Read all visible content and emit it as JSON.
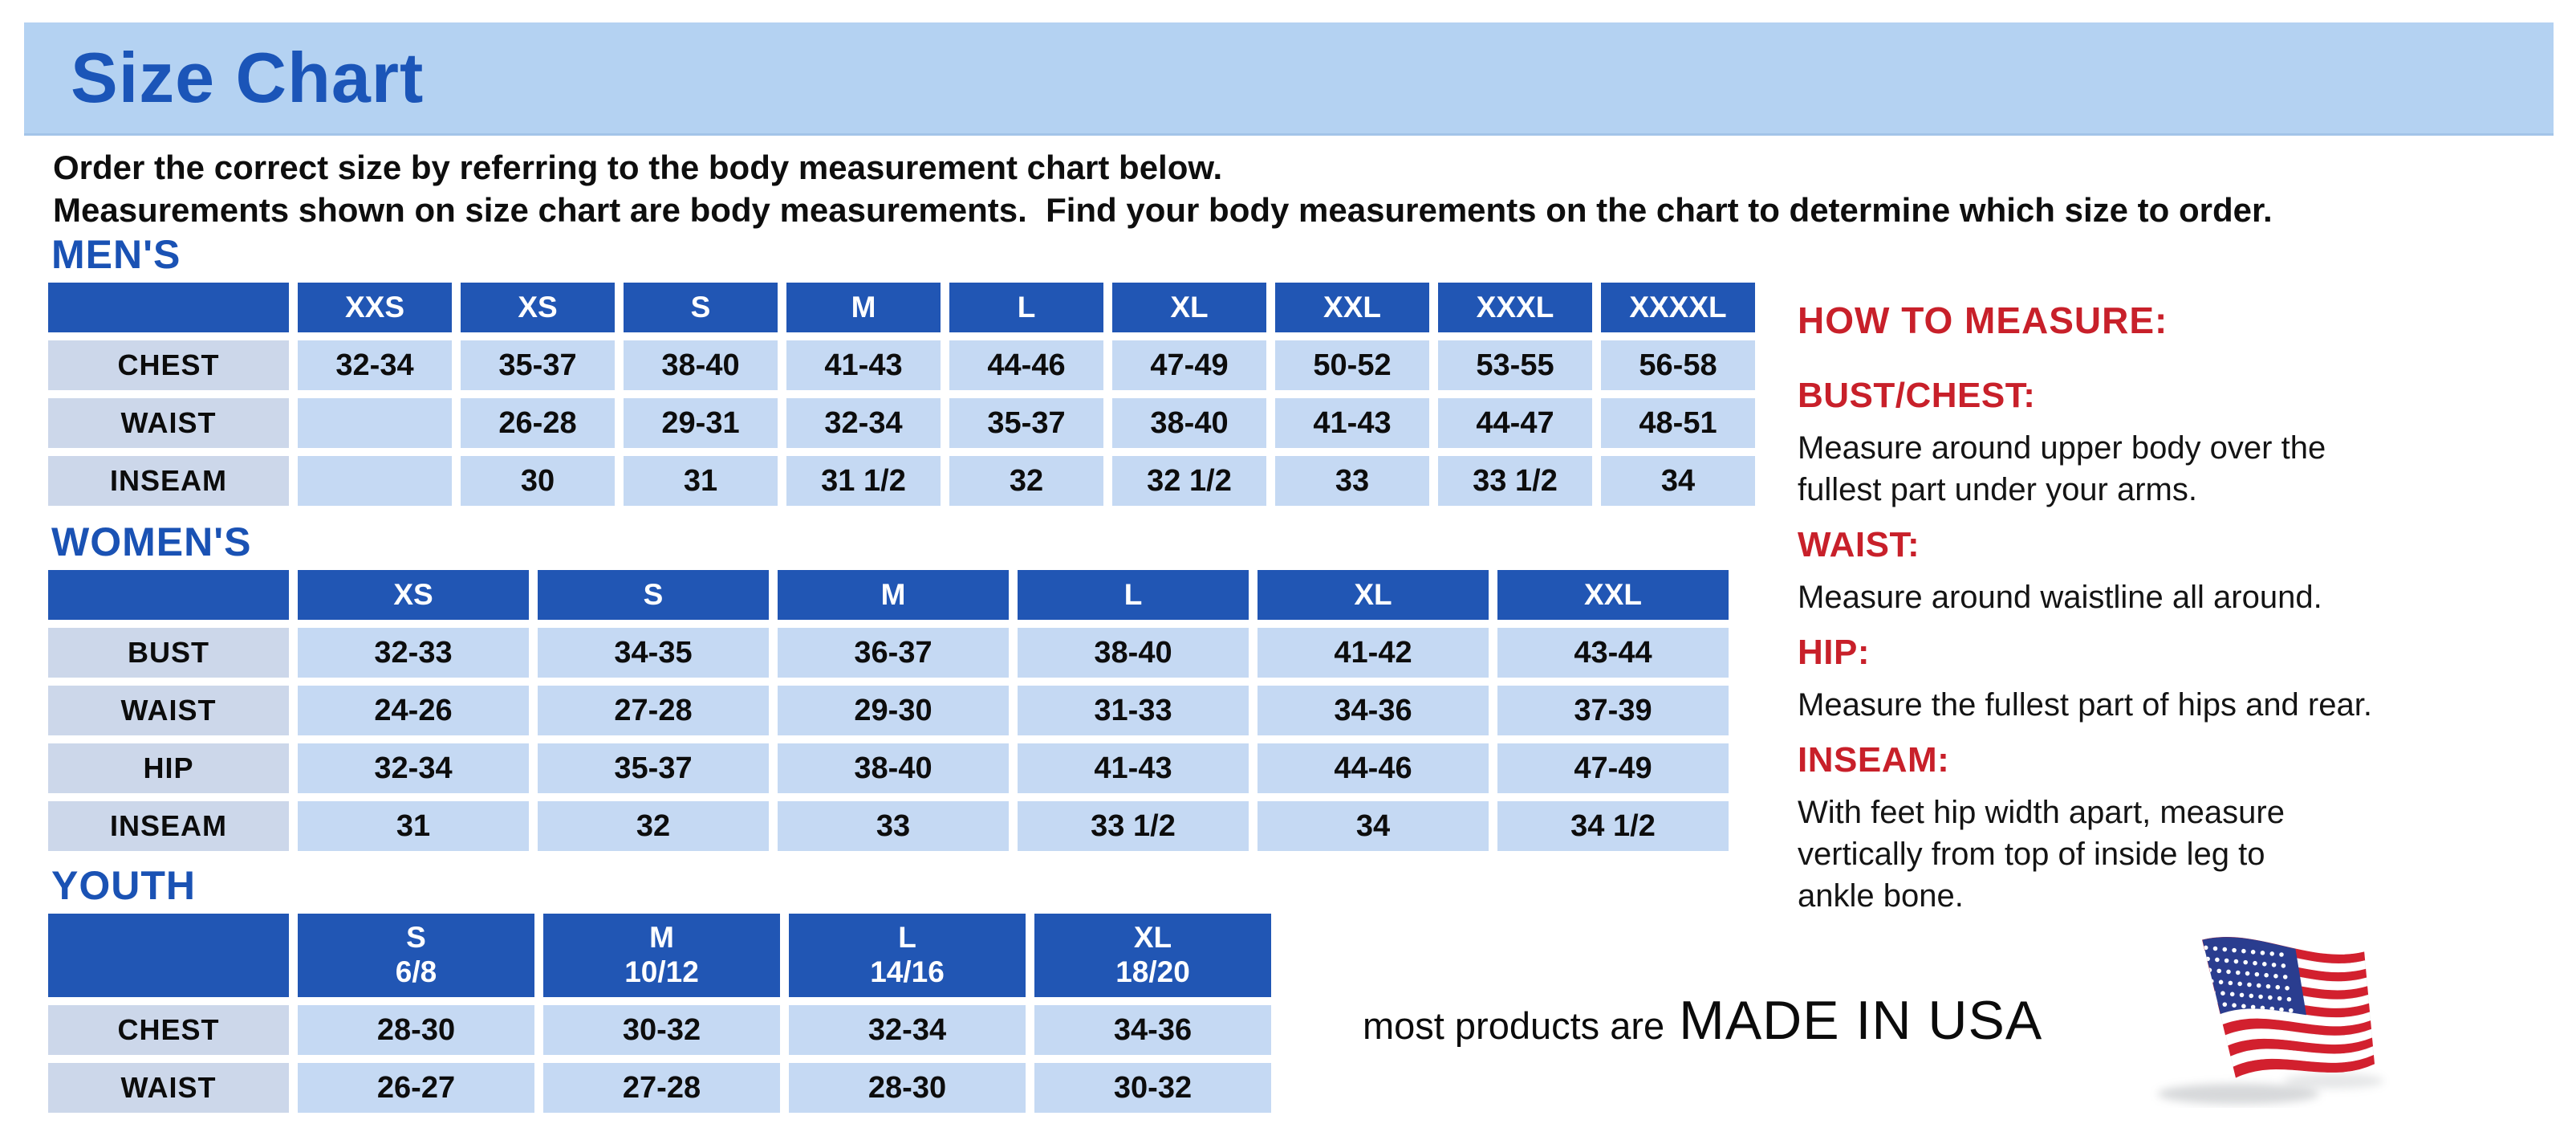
{
  "page": {
    "title": "Size Chart",
    "intro_line1": "Order the correct size by referring to the body measurement chart below.",
    "intro_line2": "Measurements shown on size chart are body measurements.  Find your body measurements on the chart to determine which size to order."
  },
  "colors": {
    "banner_blue": "#b4d2f2",
    "title_blue": "#1b55b8",
    "header_cell_blue": "#2156b4",
    "data_cell_blue": "#c5d9f3",
    "label_cell_blue": "#ccd7ea",
    "heading_red": "#c8202a",
    "flag_red": "#d2202e",
    "flag_blue": "#2a3d8f"
  },
  "tables": {
    "mens": {
      "heading": "MEN'S",
      "headers": [
        "XXS",
        "XS",
        "S",
        "M",
        "L",
        "XL",
        "XXL",
        "XXXL",
        "XXXXL"
      ],
      "rows": [
        {
          "label": "CHEST",
          "values": [
            "32-34",
            "35-37",
            "38-40",
            "41-43",
            "44-46",
            "47-49",
            "50-52",
            "53-55",
            "56-58"
          ]
        },
        {
          "label": "WAIST",
          "values": [
            "",
            "26-28",
            "29-31",
            "32-34",
            "35-37",
            "38-40",
            "41-43",
            "44-47",
            "48-51"
          ]
        },
        {
          "label": "INSEAM",
          "values": [
            "",
            "30",
            "31",
            "31 1/2",
            "32",
            "32 1/2",
            "33",
            "33 1/2",
            "34"
          ]
        }
      ]
    },
    "womens": {
      "heading": "WOMEN'S",
      "headers": [
        "XS",
        "S",
        "M",
        "L",
        "XL",
        "XXL"
      ],
      "rows": [
        {
          "label": "BUST",
          "values": [
            "32-33",
            "34-35",
            "36-37",
            "38-40",
            "41-42",
            "43-44"
          ]
        },
        {
          "label": "WAIST",
          "values": [
            "24-26",
            "27-28",
            "29-30",
            "31-33",
            "34-36",
            "37-39"
          ]
        },
        {
          "label": "HIP",
          "values": [
            "32-34",
            "35-37",
            "38-40",
            "41-43",
            "44-46",
            "47-49"
          ]
        },
        {
          "label": "INSEAM",
          "values": [
            "31",
            "32",
            "33",
            "33 1/2",
            "34",
            "34 1/2"
          ]
        }
      ]
    },
    "youth": {
      "heading": "YOUTH",
      "headers": [
        "S\n6/8",
        "M\n10/12",
        "L\n14/16",
        "XL\n18/20"
      ],
      "rows": [
        {
          "label": "CHEST",
          "values": [
            "28-30",
            "30-32",
            "32-34",
            "34-36"
          ]
        },
        {
          "label": "WAIST",
          "values": [
            "26-27",
            "27-28",
            "28-30",
            "30-32"
          ]
        }
      ]
    }
  },
  "how_to_measure": {
    "heading": "HOW TO MEASURE:",
    "sections": [
      {
        "label": "BUST/CHEST:",
        "text": "Measure around upper body over the\nfullest part under your arms."
      },
      {
        "label": "WAIST:",
        "text": "Measure around waistline all around."
      },
      {
        "label": "HIP:",
        "text": "Measure the fullest part of hips and rear."
      },
      {
        "label": "INSEAM:",
        "text": "With feet hip width apart, measure\nvertically from top of inside leg to\nankle bone."
      }
    ]
  },
  "footer": {
    "made_in_prefix": "most products are",
    "made_in": "MADE IN USA",
    "flag_icon": "us-flag-icon"
  }
}
